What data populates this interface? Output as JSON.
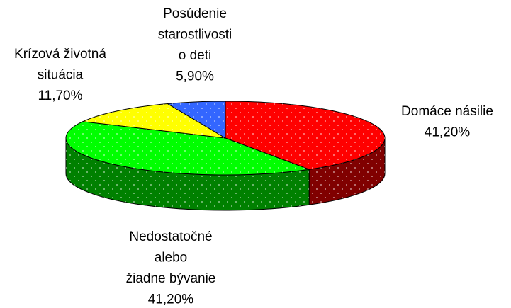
{
  "chart_data": {
    "type": "pie3d",
    "categories": [
      [
        "Domáce násilie"
      ],
      [
        "Nedostatočné",
        "alebo",
        "žiadne bývanie"
      ],
      [
        "Krízová životná",
        "situácia"
      ],
      [
        "Posúdenie",
        "starostlivosti",
        "o deti"
      ]
    ],
    "values": [
      41.2,
      41.2,
      11.7,
      5.9
    ],
    "value_labels": [
      "41,20%",
      "41,20%",
      "11,70%",
      "5,90%"
    ],
    "colors": [
      "#ff0000",
      "#00ff00",
      "#ffff00",
      "#3366ff"
    ]
  }
}
